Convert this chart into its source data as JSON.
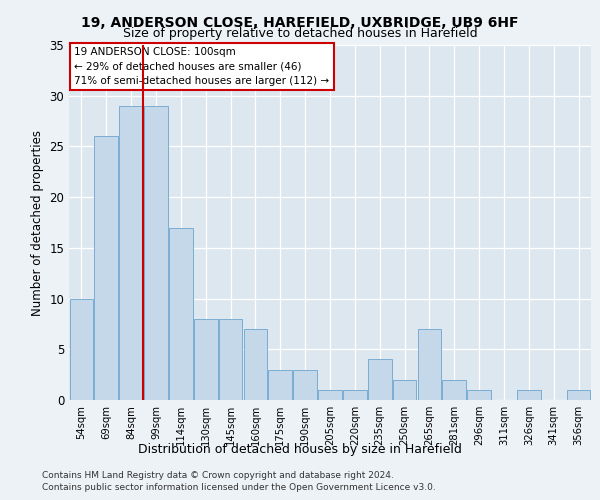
{
  "title1": "19, ANDERSON CLOSE, HAREFIELD, UXBRIDGE, UB9 6HF",
  "title2": "Size of property relative to detached houses in Harefield",
  "xlabel": "Distribution of detached houses by size in Harefield",
  "ylabel": "Number of detached properties",
  "categories": [
    "54sqm",
    "69sqm",
    "84sqm",
    "99sqm",
    "114sqm",
    "130sqm",
    "145sqm",
    "160sqm",
    "175sqm",
    "190sqm",
    "205sqm",
    "220sqm",
    "235sqm",
    "250sqm",
    "265sqm",
    "281sqm",
    "296sqm",
    "311sqm",
    "326sqm",
    "341sqm",
    "356sqm"
  ],
  "values": [
    10,
    26,
    29,
    29,
    17,
    8,
    8,
    7,
    3,
    3,
    1,
    1,
    4,
    2,
    7,
    2,
    1,
    0,
    1,
    0,
    1
  ],
  "bar_color": "#c5d8ea",
  "bar_edge_color": "#7aadd4",
  "red_line_x": 2.475,
  "annotation_text_line1": "19 ANDERSON CLOSE: 100sqm",
  "annotation_text_line2": "← 29% of detached houses are smaller (46)",
  "annotation_text_line3": "71% of semi-detached houses are larger (112) →",
  "footer1": "Contains HM Land Registry data © Crown copyright and database right 2024.",
  "footer2": "Contains public sector information licensed under the Open Government Licence v3.0.",
  "ylim": [
    0,
    35
  ],
  "yticks": [
    0,
    5,
    10,
    15,
    20,
    25,
    30,
    35
  ],
  "fig_bg_color": "#edf2f7",
  "plot_bg_color": "#dde7f0"
}
